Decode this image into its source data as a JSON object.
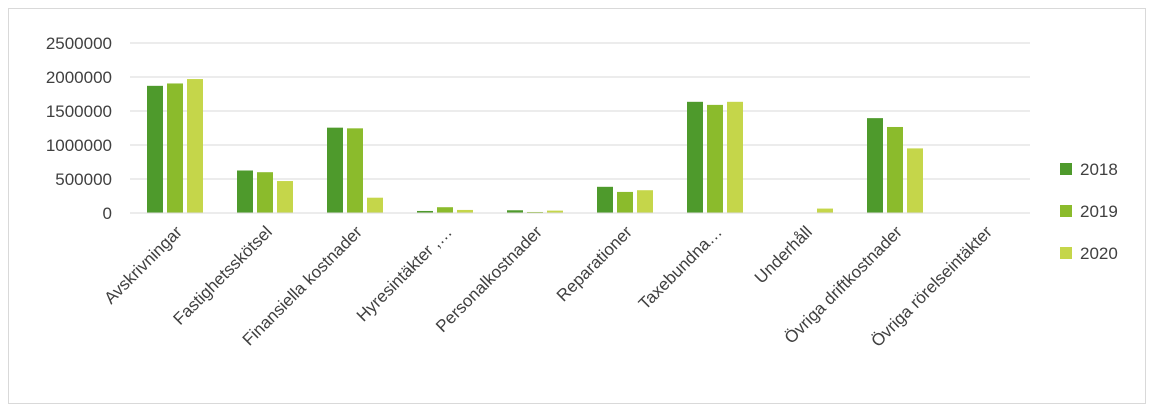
{
  "chart_data": {
    "type": "bar",
    "title": "",
    "xlabel": "",
    "ylabel": "",
    "ylim": [
      0,
      2500000
    ],
    "yticks": [
      "0",
      "500000",
      "1000000",
      "1500000",
      "2000000",
      "2500000"
    ],
    "grid": true,
    "legend_position": "right",
    "categories": [
      "Avskrivningar",
      "Fastighetsskötsel",
      "Finansiella kostnader",
      "Hyresintäkter ,…",
      "Personalkostnader",
      "Reparationer",
      "Taxebundna…",
      "Underhåll",
      "Övriga driftkostnader",
      "Övriga rörelseintäkter"
    ],
    "series": [
      {
        "name": "2018",
        "color": "#4e9a2c",
        "values": [
          1870000,
          625000,
          1255000,
          30000,
          40000,
          385000,
          1635000,
          0,
          1395000,
          0
        ]
      },
      {
        "name": "2019",
        "color": "#8bbb2c",
        "values": [
          1905000,
          600000,
          1245000,
          85000,
          15000,
          310000,
          1590000,
          0,
          1265000,
          0
        ]
      },
      {
        "name": "2020",
        "color": "#c5d64a",
        "values": [
          1970000,
          470000,
          225000,
          45000,
          35000,
          335000,
          1635000,
          65000,
          950000,
          0
        ]
      }
    ]
  }
}
